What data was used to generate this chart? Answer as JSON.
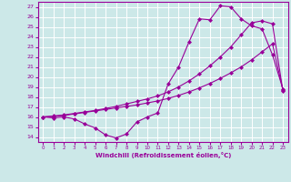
{
  "title": "",
  "xlabel": "Windchill (Refroidissement éolien,°C)",
  "xlim": [
    -0.5,
    23.5
  ],
  "ylim": [
    13.5,
    27.5
  ],
  "xticks": [
    0,
    1,
    2,
    3,
    4,
    5,
    6,
    7,
    8,
    9,
    10,
    11,
    12,
    13,
    14,
    15,
    16,
    17,
    18,
    19,
    20,
    21,
    22,
    23
  ],
  "yticks": [
    14,
    15,
    16,
    17,
    18,
    19,
    20,
    21,
    22,
    23,
    24,
    25,
    26,
    27
  ],
  "bg_color": "#cce8e8",
  "line_color": "#990099",
  "grid_color": "#ffffff",
  "line1_x": [
    0,
    1,
    2,
    3,
    4,
    5,
    6,
    7,
    8,
    9,
    10,
    11,
    12,
    13,
    14,
    15,
    16,
    17,
    18,
    19,
    20,
    21,
    22,
    23
  ],
  "line1_y": [
    16.0,
    15.9,
    16.0,
    15.8,
    15.3,
    14.9,
    14.2,
    13.9,
    14.3,
    15.5,
    16.0,
    16.4,
    19.3,
    21.0,
    23.5,
    25.8,
    25.7,
    27.1,
    27.0,
    25.8,
    25.1,
    24.8,
    22.2,
    18.8
  ],
  "line2_x": [
    0,
    1,
    2,
    3,
    4,
    5,
    6,
    7,
    8,
    9,
    10,
    11,
    12,
    13,
    14,
    15,
    16,
    17,
    18,
    19,
    20,
    21,
    22,
    23
  ],
  "line2_y": [
    16.0,
    16.05,
    16.15,
    16.3,
    16.45,
    16.6,
    16.75,
    16.9,
    17.05,
    17.2,
    17.4,
    17.6,
    17.85,
    18.15,
    18.5,
    18.9,
    19.35,
    19.85,
    20.4,
    21.0,
    21.7,
    22.5,
    23.3,
    18.7
  ],
  "line3_x": [
    0,
    1,
    2,
    3,
    4,
    5,
    6,
    7,
    8,
    9,
    10,
    11,
    12,
    13,
    14,
    15,
    16,
    17,
    18,
    19,
    20,
    21,
    22,
    23
  ],
  "line3_y": [
    16.0,
    16.1,
    16.2,
    16.35,
    16.5,
    16.65,
    16.85,
    17.05,
    17.3,
    17.55,
    17.8,
    18.1,
    18.5,
    19.0,
    19.6,
    20.3,
    21.1,
    22.0,
    23.0,
    24.2,
    25.4,
    25.6,
    25.3,
    18.6
  ],
  "marker": "D",
  "markersize": 2.0,
  "linewidth": 0.8
}
